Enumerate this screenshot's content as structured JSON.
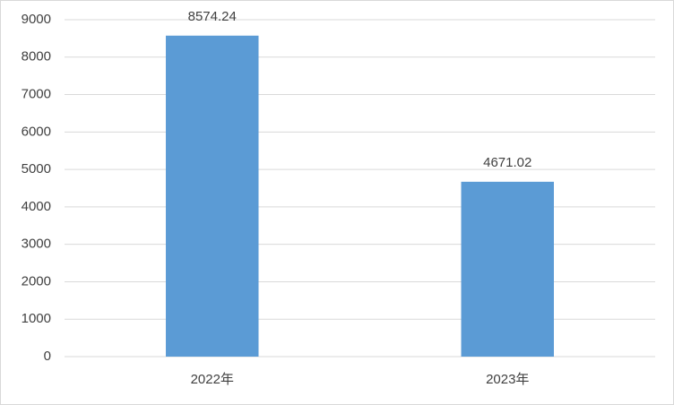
{
  "chart_data": {
    "type": "bar",
    "categories": [
      "2022年",
      "2023年"
    ],
    "values": [
      8574.24,
      4671.02
    ],
    "color": "#5b9bd5",
    "ylim": [
      0,
      9000
    ],
    "yticks": [
      0,
      1000,
      2000,
      3000,
      4000,
      5000,
      6000,
      7000,
      8000,
      9000
    ],
    "grid": true,
    "data_labels": true
  }
}
